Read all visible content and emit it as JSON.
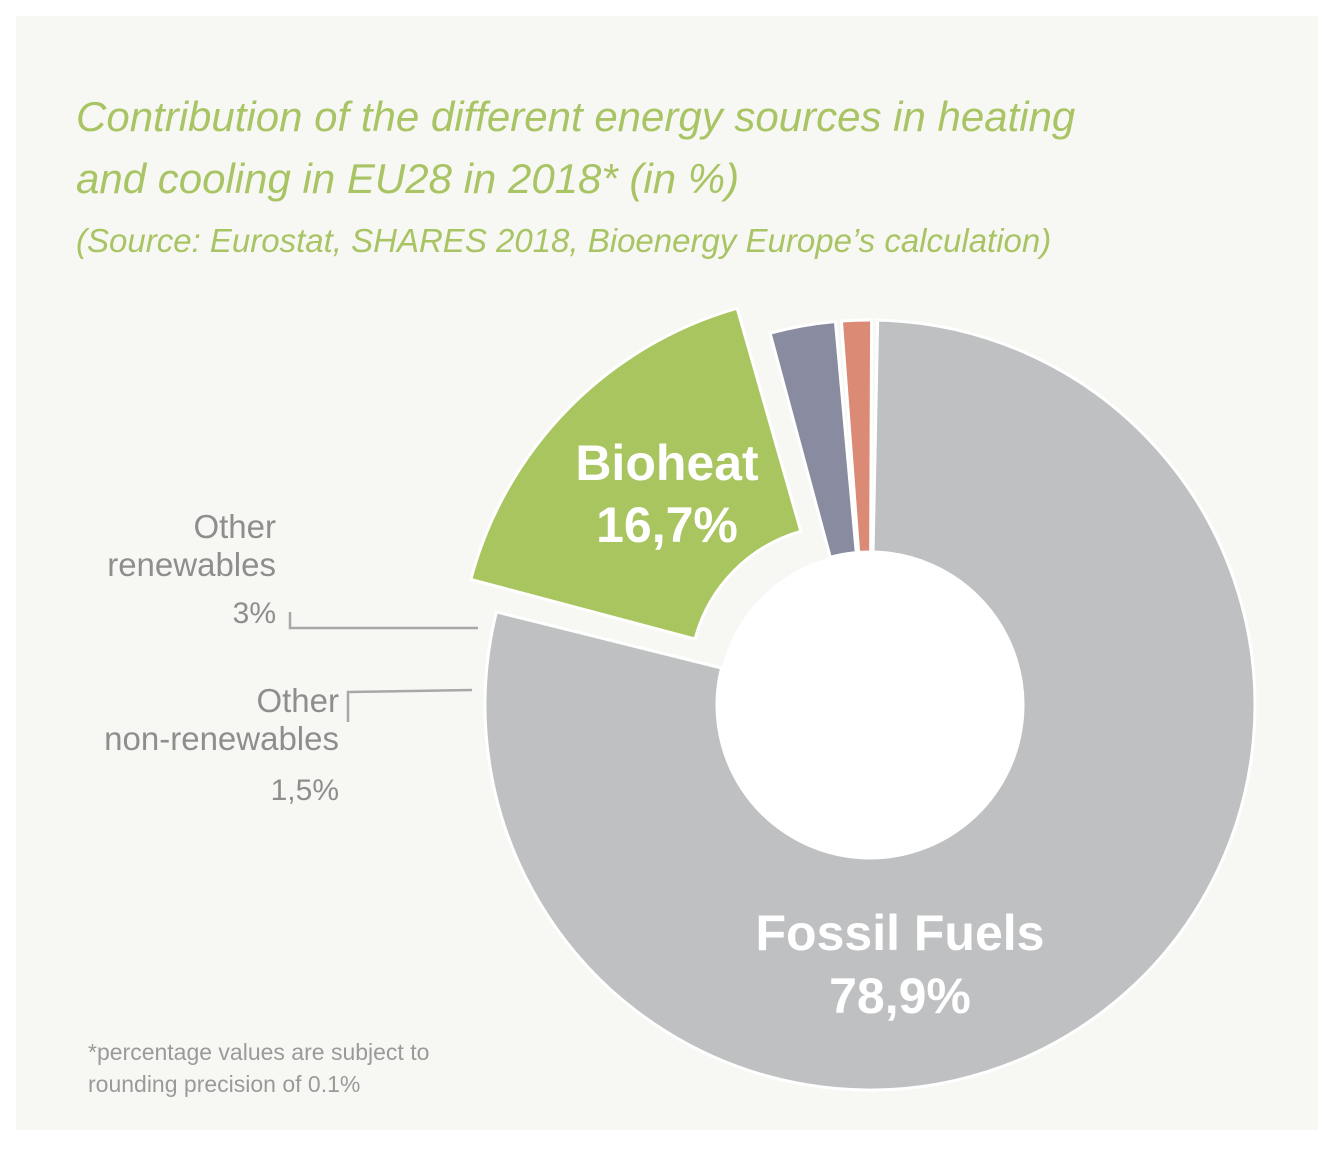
{
  "title_line1": "Contribution of the different energy sources in heating",
  "title_line2": "and cooling in EU28 in 2018* (in %)",
  "source": "(Source: Eurostat, SHARES 2018, Bioenergy Europe’s calculation)",
  "footnote_line1": "*percentage values are subject to",
  "footnote_line2": "rounding precision of 0.1%",
  "chart_data": {
    "type": "pie",
    "style": "donut",
    "slices": [
      {
        "name": "Fossil Fuels",
        "value": 78.9,
        "label": "78,9%",
        "color": "#bfc0c2"
      },
      {
        "name": "Bioheat",
        "value": 16.7,
        "label": "16,7%",
        "color": "#a9c55f",
        "exploded": true
      },
      {
        "name": "Other renewables",
        "value": 3,
        "label": "3%",
        "color": "#898ca0"
      },
      {
        "name": "Other non-renewables",
        "value": 1.5,
        "label": "1,5%",
        "color": "#db8a75"
      }
    ],
    "labels": {
      "fossil_name": "Fossil Fuels",
      "fossil_value": "78,9%",
      "bio_name": "Bioheat",
      "bio_value": "16,7%",
      "renew_name_1": "Other",
      "renew_name_2": "renewables",
      "renew_value": "3%",
      "nonrenew_name_1": "Other",
      "nonrenew_name_2": "non-renewables",
      "nonrenew_value": "1,5%"
    }
  }
}
